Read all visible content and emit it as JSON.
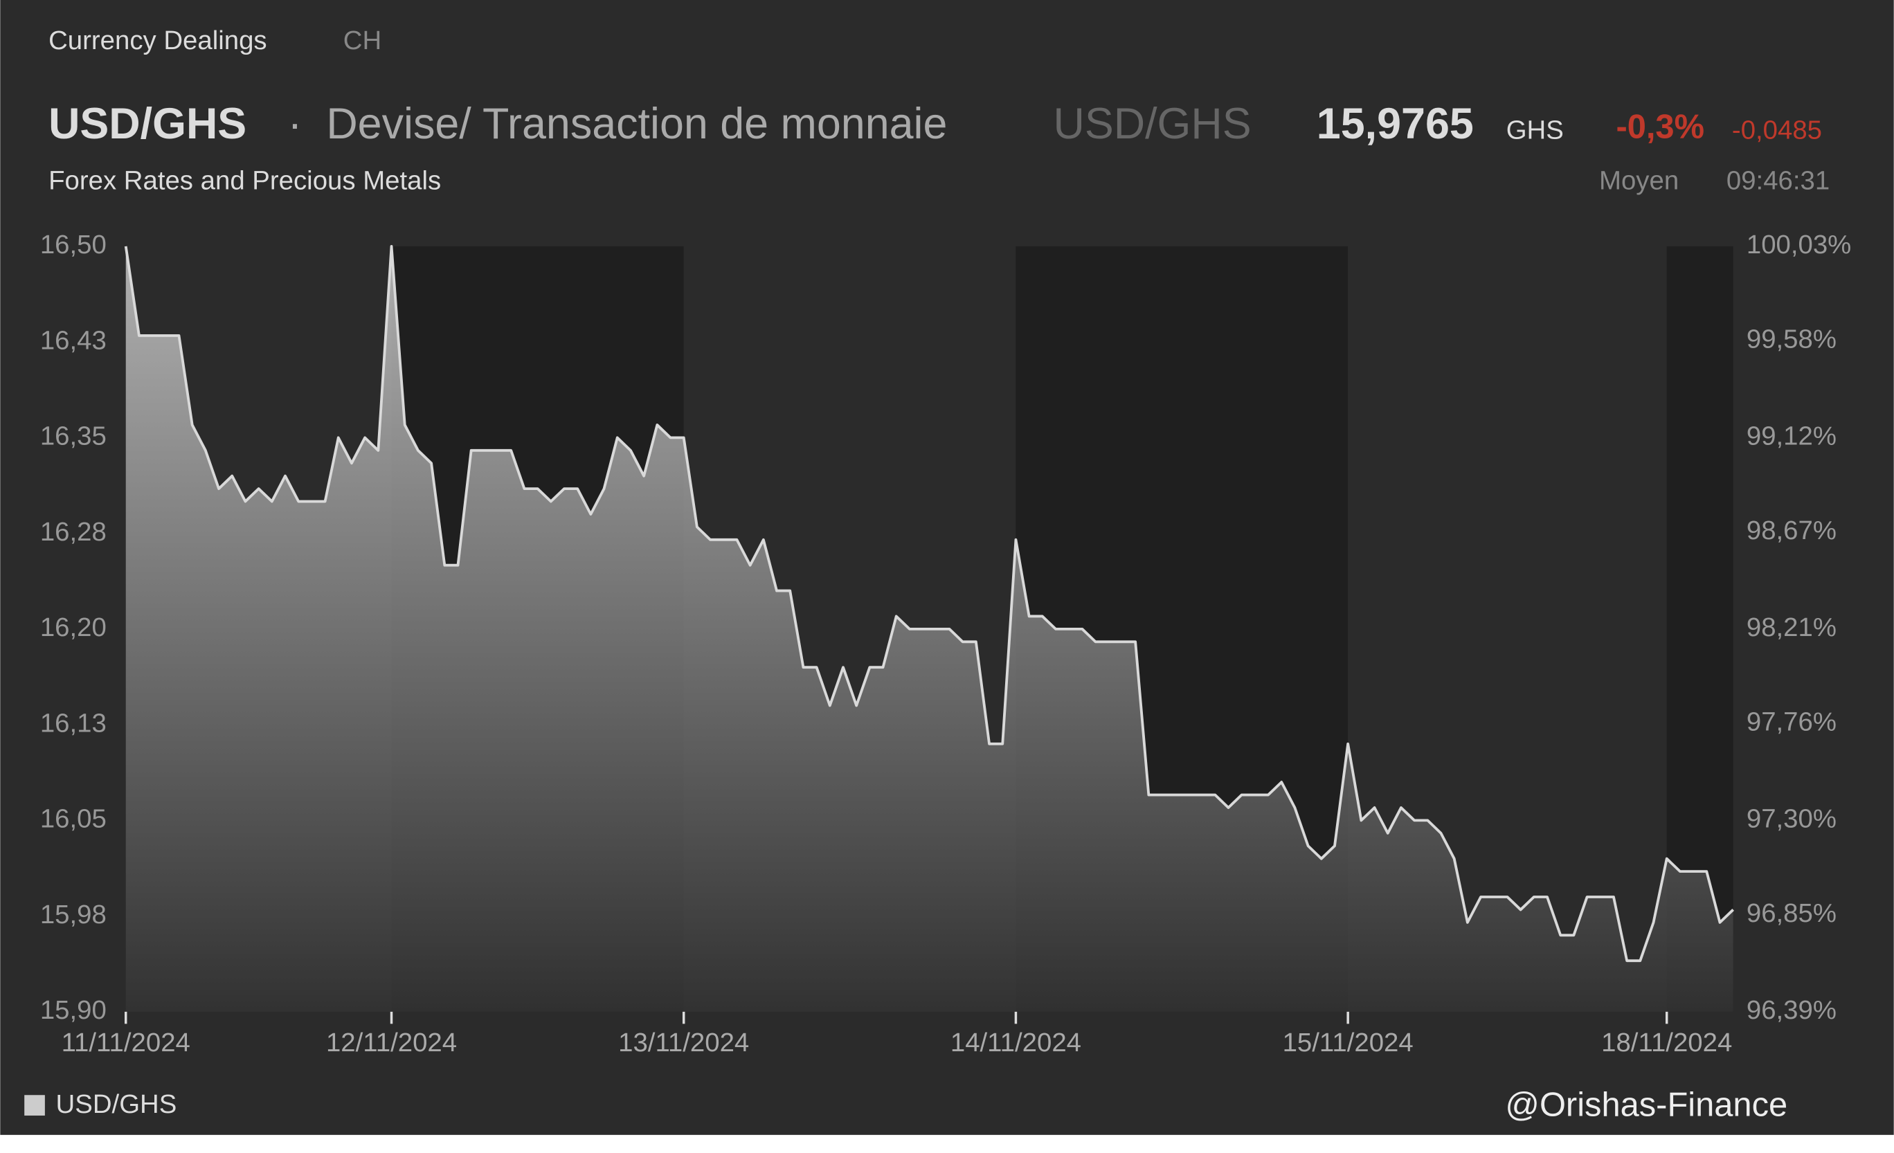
{
  "header": {
    "section": "Currency Dealings",
    "region": "CH",
    "symbol": "USD/GHS",
    "separator": "·",
    "name": "Devise/ Transaction de monnaie",
    "symbol_alt": "USD/GHS",
    "price": "15,9765",
    "currency": "GHS",
    "change_pct": "-0,3%",
    "change_abs": "-0,0485",
    "subtitle": "Forex Rates and Precious Metals",
    "price_type": "Moyen",
    "time": "09:46:31"
  },
  "watermark": "@Orishas-Finance",
  "chart_data": {
    "type": "area",
    "categories": [
      "11/11/2024",
      null,
      null,
      null,
      null,
      null,
      null,
      null,
      null,
      null,
      null,
      null,
      null,
      null,
      null,
      null,
      null,
      null,
      null,
      null,
      "12/11/2024",
      null,
      null,
      null,
      null,
      null,
      null,
      null,
      null,
      null,
      null,
      null,
      null,
      null,
      null,
      null,
      null,
      null,
      null,
      null,
      null,
      null,
      "13/11/2024",
      null,
      null,
      null,
      null,
      null,
      null,
      null,
      null,
      null,
      null,
      null,
      null,
      null,
      null,
      null,
      null,
      null,
      null,
      null,
      null,
      null,
      null,
      null,
      null,
      "14/11/2024",
      null,
      null,
      null,
      null,
      null,
      null,
      null,
      null,
      null,
      null,
      null,
      null,
      null,
      null,
      null,
      null,
      null,
      null,
      null,
      null,
      null,
      null,
      null,
      null,
      "15/11/2024",
      null,
      null,
      null,
      null,
      null,
      null,
      null,
      null,
      null,
      null,
      null,
      null,
      null,
      null,
      null,
      null,
      null,
      null,
      null,
      null,
      null,
      null,
      null,
      "18/11/2024",
      null,
      null,
      null,
      null,
      null
    ],
    "series": [
      {
        "name": "USD/GHS",
        "color": "#d9d9d9",
        "values": [
          16.5,
          16.43,
          16.43,
          16.43,
          16.43,
          16.36,
          16.34,
          16.31,
          16.32,
          16.3,
          16.31,
          16.3,
          16.32,
          16.3,
          16.3,
          16.3,
          16.35,
          16.33,
          16.35,
          16.34,
          16.5,
          16.36,
          16.34,
          16.33,
          16.25,
          16.25,
          16.34,
          16.34,
          16.34,
          16.34,
          16.31,
          16.31,
          16.3,
          16.31,
          16.31,
          16.29,
          16.31,
          16.35,
          16.34,
          16.32,
          16.36,
          16.35,
          16.35,
          16.28,
          16.27,
          16.27,
          16.27,
          16.25,
          16.27,
          16.23,
          16.23,
          16.17,
          16.17,
          16.14,
          16.17,
          16.14,
          16.17,
          16.17,
          16.21,
          16.2,
          16.2,
          16.2,
          16.2,
          16.19,
          16.19,
          16.11,
          16.11,
          16.27,
          16.21,
          16.21,
          16.2,
          16.2,
          16.2,
          16.19,
          16.19,
          16.19,
          16.19,
          16.07,
          16.07,
          16.07,
          16.07,
          16.07,
          16.07,
          16.06,
          16.07,
          16.07,
          16.07,
          16.08,
          16.06,
          16.03,
          16.02,
          16.03,
          16.11,
          16.05,
          16.06,
          16.04,
          16.06,
          16.05,
          16.05,
          16.04,
          16.02,
          15.97,
          15.99,
          15.99,
          15.99,
          15.98,
          15.99,
          15.99,
          15.96,
          15.96,
          15.99,
          15.99,
          15.99,
          15.94,
          15.94,
          15.97,
          16.02,
          16.01,
          16.01,
          16.01,
          15.97,
          15.98
        ]
      }
    ],
    "ylim": [
      15.9,
      16.5
    ],
    "yticks": [
      {
        "value": 15.9,
        "label": "15,90"
      },
      {
        "value": 15.975,
        "label": "15,98"
      },
      {
        "value": 16.05,
        "label": "16,05"
      },
      {
        "value": 16.125,
        "label": "16,13"
      },
      {
        "value": 16.2,
        "label": "16,20"
      },
      {
        "value": 16.275,
        "label": "16,28"
      },
      {
        "value": 16.35,
        "label": "16,35"
      },
      {
        "value": 16.425,
        "label": "16,43"
      },
      {
        "value": 16.5,
        "label": "16,50"
      }
    ],
    "y2lim": [
      96.39,
      100.03
    ],
    "y2ticks": [
      {
        "value": 96.39,
        "label": "96,39%"
      },
      {
        "value": 96.85,
        "label": "96,85%"
      },
      {
        "value": 97.3,
        "label": "97,30%"
      },
      {
        "value": 97.76,
        "label": "97,76%"
      },
      {
        "value": 98.21,
        "label": "98,21%"
      },
      {
        "value": 98.67,
        "label": "98,67%"
      },
      {
        "value": 99.12,
        "label": "99,12%"
      },
      {
        "value": 99.58,
        "label": "99,58%"
      },
      {
        "value": 100.03,
        "label": "100,03%"
      }
    ],
    "grid": false,
    "legend": "bottom-left"
  }
}
